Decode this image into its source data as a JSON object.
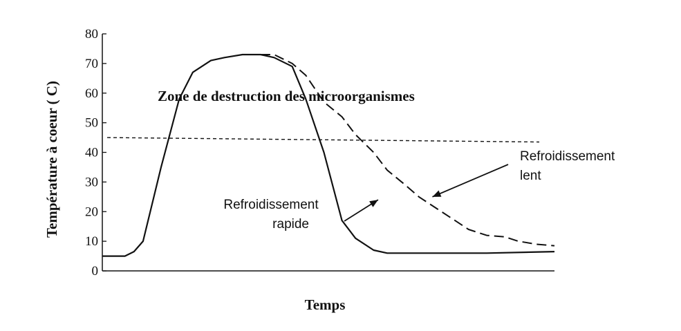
{
  "chart_data": {
    "type": "line",
    "title": "",
    "xlabel": "Temps",
    "ylabel": "Température à coeur ( C)",
    "ylim": [
      0,
      80
    ],
    "yticks": [
      0,
      10,
      20,
      30,
      40,
      50,
      60,
      70,
      80
    ],
    "threshold": {
      "y": 45,
      "label": "Zone de destruction des microorganismes"
    },
    "series": [
      {
        "name": "Refroidissement rapide",
        "style": "solid",
        "x": [
          0,
          5,
          7,
          9,
          13,
          17,
          20,
          24,
          27,
          31,
          35,
          38,
          42,
          45,
          49,
          53,
          56,
          60,
          63,
          67,
          70,
          74,
          78,
          81,
          85,
          100
        ],
        "y": [
          5,
          5,
          6.5,
          10,
          35,
          58,
          67,
          71,
          72,
          73,
          73,
          72,
          69,
          58,
          40,
          17,
          11,
          7,
          6,
          6,
          6,
          6,
          6,
          6,
          6,
          6.5
        ]
      },
      {
        "name": "Refroidissement lent",
        "style": "dashed",
        "x": [
          35,
          38,
          42,
          45,
          49,
          53,
          56,
          60,
          63,
          67,
          70,
          74,
          78,
          81,
          85,
          89,
          92,
          96,
          100
        ],
        "y": [
          73,
          73,
          70,
          66,
          57,
          52,
          46,
          40,
          34,
          29,
          25,
          21,
          17,
          14,
          12,
          11.5,
          10,
          9,
          8.5
        ]
      }
    ],
    "annotations": [
      {
        "text_lines": [
          "Refroidissement",
          "rapide"
        ],
        "arrow_to": {
          "x": 61,
          "y": 24
        }
      },
      {
        "text_lines": [
          "Refroidissement",
          "lent"
        ],
        "arrow_to": {
          "x": 73,
          "y": 25
        }
      }
    ]
  }
}
